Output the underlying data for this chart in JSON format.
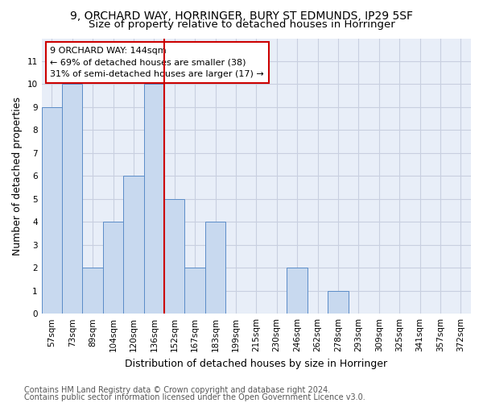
{
  "title1": "9, ORCHARD WAY, HORRINGER, BURY ST EDMUNDS, IP29 5SF",
  "title2": "Size of property relative to detached houses in Horringer",
  "xlabel": "Distribution of detached houses by size in Horringer",
  "ylabel": "Number of detached properties",
  "categories": [
    "57sqm",
    "73sqm",
    "89sqm",
    "104sqm",
    "120sqm",
    "136sqm",
    "152sqm",
    "167sqm",
    "183sqm",
    "199sqm",
    "215sqm",
    "230sqm",
    "246sqm",
    "262sqm",
    "278sqm",
    "293sqm",
    "309sqm",
    "325sqm",
    "341sqm",
    "357sqm",
    "372sqm"
  ],
  "values": [
    9,
    10,
    2,
    4,
    6,
    10,
    5,
    2,
    4,
    0,
    0,
    0,
    2,
    0,
    1,
    0,
    0,
    0,
    0,
    0,
    0
  ],
  "bar_color": "#c8d9ef",
  "bar_edge_color": "#5b8cc8",
  "subject_line_color": "#cc0000",
  "annotation_text": "9 ORCHARD WAY: 144sqm\n← 69% of detached houses are smaller (38)\n31% of semi-detached houses are larger (17) →",
  "annotation_box_color": "#ffffff",
  "annotation_box_edge_color": "#cc0000",
  "ylim": [
    0,
    12
  ],
  "yticks": [
    0,
    1,
    2,
    3,
    4,
    5,
    6,
    7,
    8,
    9,
    10,
    11,
    12
  ],
  "footer1": "Contains HM Land Registry data © Crown copyright and database right 2024.",
  "footer2": "Contains public sector information licensed under the Open Government Licence v3.0.",
  "bg_color": "#ffffff",
  "plot_bg_color": "#e8eef8",
  "grid_color": "#c8cfe0",
  "title1_fontsize": 10,
  "title2_fontsize": 9.5,
  "xlabel_fontsize": 9,
  "ylabel_fontsize": 9,
  "tick_fontsize": 7.5,
  "annotation_fontsize": 8,
  "footer_fontsize": 7
}
